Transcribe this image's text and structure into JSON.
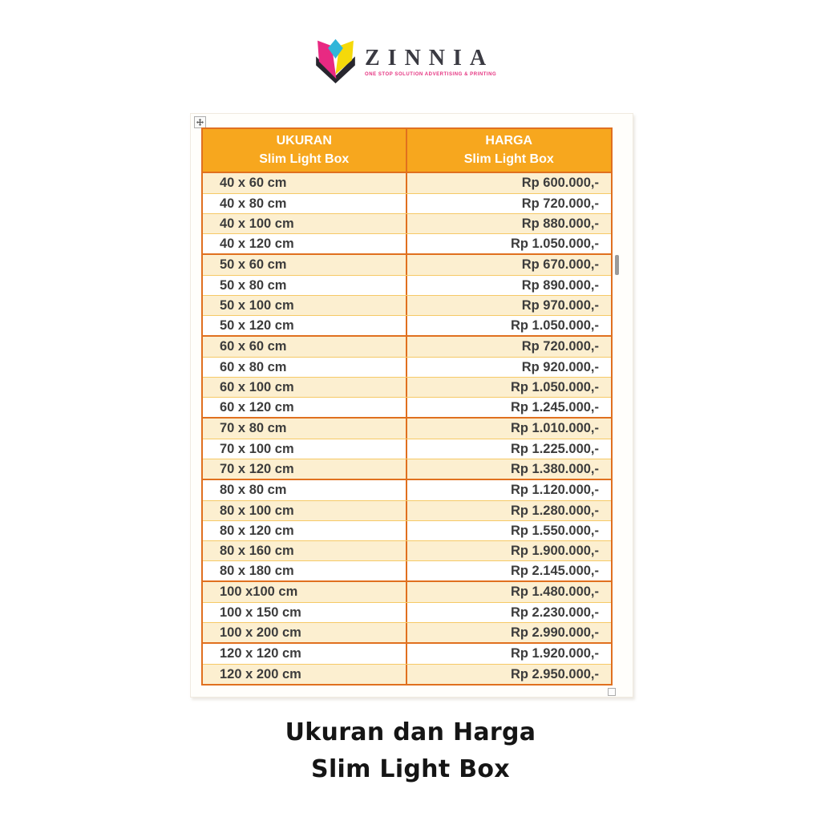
{
  "logo": {
    "brand": "ZINNIA",
    "tagline": "ONE STOP SOLUTION ADVERTISING & PRINTING"
  },
  "table": {
    "header": {
      "col1_title": "UKURAN",
      "col1_subtitle": "Slim Light Box",
      "col2_title": "HARGA",
      "col2_subtitle": "Slim Light Box"
    },
    "groups": [
      {
        "rows": [
          {
            "size": "40 x 60 cm",
            "price": "Rp 600.000,-"
          },
          {
            "size": "40 x 80 cm",
            "price": "Rp 720.000,-"
          },
          {
            "size": "40 x 100 cm",
            "price": "Rp 880.000,-"
          },
          {
            "size": "40 x 120 cm",
            "price": "Rp 1.050.000,-"
          }
        ]
      },
      {
        "rows": [
          {
            "size": "50 x 60 cm",
            "price": "Rp 670.000,-"
          },
          {
            "size": "50 x 80 cm",
            "price": "Rp 890.000,-"
          },
          {
            "size": "50 x 100 cm",
            "price": "Rp 970.000,-"
          },
          {
            "size": "50 x 120 cm",
            "price": "Rp 1.050.000,-"
          }
        ]
      },
      {
        "rows": [
          {
            "size": "60 x 60 cm",
            "price": "Rp 720.000,-"
          },
          {
            "size": "60 x 80 cm",
            "price": "Rp 920.000,-"
          },
          {
            "size": "60 x 100 cm",
            "price": "Rp 1.050.000,-"
          },
          {
            "size": "60 x 120 cm",
            "price": "Rp 1.245.000,-"
          }
        ]
      },
      {
        "rows": [
          {
            "size": "70 x 80 cm",
            "price": "Rp 1.010.000,-"
          },
          {
            "size": "70 x 100 cm",
            "price": "Rp 1.225.000,-"
          },
          {
            "size": "70 x 120 cm",
            "price": "Rp 1.380.000,-"
          }
        ]
      },
      {
        "rows": [
          {
            "size": "80 x 80 cm",
            "price": "Rp 1.120.000,-"
          },
          {
            "size": "80 x 100 cm",
            "price": "Rp 1.280.000,-"
          },
          {
            "size": "80 x 120 cm",
            "price": "Rp 1.550.000,-"
          },
          {
            "size": "80 x 160 cm",
            "price": "Rp 1.900.000,-"
          },
          {
            "size": "80 x 180 cm",
            "price": "Rp 2.145.000,-"
          }
        ]
      },
      {
        "rows": [
          {
            "size": "100 x100 cm",
            "price": "Rp 1.480.000,-"
          },
          {
            "size": "100 x 150 cm",
            "price": "Rp 2.230.000,-"
          },
          {
            "size": "100 x 200 cm",
            "price": "Rp 2.990.000,-"
          }
        ]
      },
      {
        "rows": [
          {
            "size": "120 x 120 cm",
            "price": "Rp 1.920.000,-"
          },
          {
            "size": "120 x 200 cm",
            "price": "Rp 2.950.000,-"
          }
        ]
      }
    ]
  },
  "caption": {
    "line1": "Ukuran dan Harga",
    "line2": "Slim Light Box"
  },
  "colors": {
    "header_bg": "#F7A71E",
    "border_orange": "#E0701F",
    "row_cream": "#FCEFD0",
    "row_separator": "#F6C966",
    "text_dark": "#3C3C3C",
    "logo_pink": "#E82982",
    "logo_yellow": "#F5D90A",
    "logo_cyan": "#30B6D9",
    "logo_dark": "#27262E",
    "tagline_pink": "#E5317F"
  }
}
